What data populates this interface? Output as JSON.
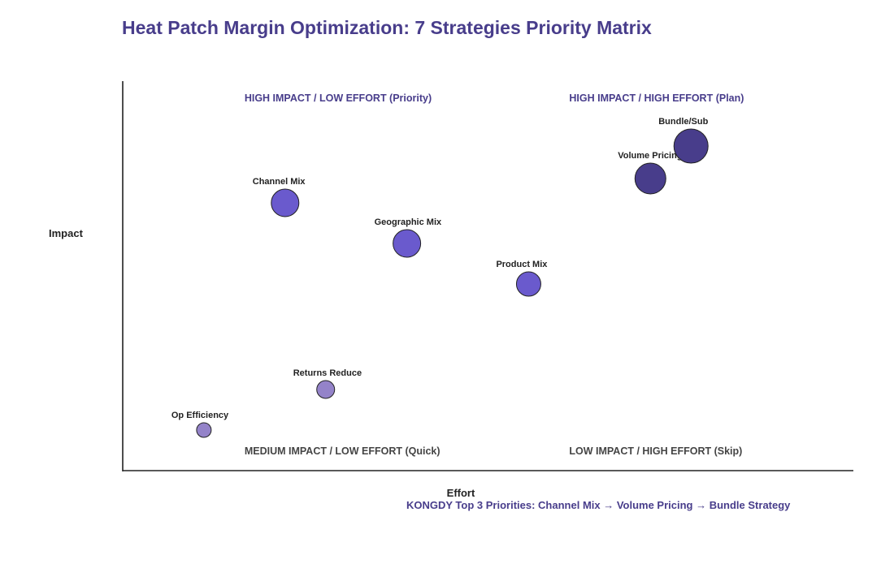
{
  "chart_data": {
    "type": "scatter",
    "title": "Heat Patch Margin Optimization: 7 Strategies Priority Matrix",
    "xlabel": "Effort",
    "ylabel": "Impact",
    "xlim": [
      0,
      9
    ],
    "ylim": [
      0,
      9.6
    ],
    "grid": false,
    "points": [
      {
        "label": "Bundle/Sub",
        "x": 7.0,
        "y": 8.0,
        "size": 20,
        "color": "#483d8b"
      },
      {
        "label": "Volume Pricing",
        "x": 6.5,
        "y": 7.2,
        "size": 18,
        "color": "#483d8b"
      },
      {
        "label": "Channel Mix",
        "x": 2.0,
        "y": 6.6,
        "size": 16,
        "color": "#6a5acd"
      },
      {
        "label": "Geographic Mix",
        "x": 3.5,
        "y": 5.6,
        "size": 16,
        "color": "#6a5acd"
      },
      {
        "label": "Product Mix",
        "x": 5.0,
        "y": 4.6,
        "size": 14,
        "color": "#6a5acd"
      },
      {
        "label": "Returns Reduce",
        "x": 2.5,
        "y": 2.0,
        "size": 10,
        "color": "#9483c9"
      },
      {
        "label": "Op Efficiency",
        "x": 1.0,
        "y": 1.0,
        "size": 8,
        "color": "#9483c9"
      }
    ],
    "quadrant_labels": [
      {
        "text": "HIGH IMPACT / LOW EFFORT (Priority)",
        "x": 1.5,
        "y": 9.2,
        "color": "#483d8b"
      },
      {
        "text": "HIGH IMPACT / HIGH EFFORT (Plan)",
        "x": 5.5,
        "y": 9.2,
        "color": "#483d8b"
      },
      {
        "text": "MEDIUM IMPACT / LOW EFFORT (Quick)",
        "x": 1.5,
        "y": 0.5,
        "color": "#444444"
      },
      {
        "text": "LOW IMPACT / HIGH EFFORT (Skip)",
        "x": 5.5,
        "y": 0.5,
        "color": "#444444"
      }
    ],
    "annotation": "KONGDY Top 3 Priorities: Channel Mix → Volume Pricing → Bundle Strategy",
    "title_color": "#483d8b",
    "annotation_color": "#483d8b"
  }
}
